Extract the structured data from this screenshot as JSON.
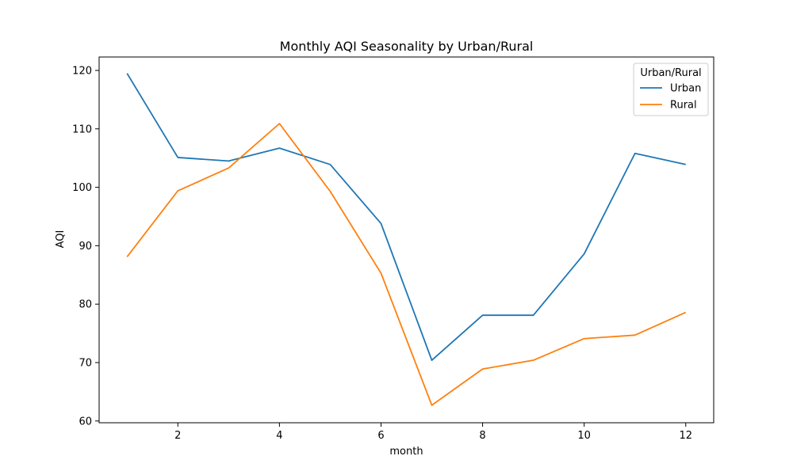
{
  "chart_data": {
    "type": "line",
    "title": "Monthly AQI Seasonality by Urban/Rural",
    "xlabel": "month",
    "ylabel": "AQI",
    "xlim": [
      0.45,
      12.55
    ],
    "ylim": [
      59.7,
      122.3
    ],
    "xticks": [
      2,
      4,
      6,
      8,
      10,
      12
    ],
    "yticks": [
      60,
      70,
      80,
      90,
      100,
      110,
      120
    ],
    "grid": false,
    "legend": {
      "title": "Urban/Rural",
      "position": "top-right"
    },
    "x": [
      1,
      2,
      3,
      4,
      5,
      6,
      7,
      8,
      9,
      10,
      11,
      12
    ],
    "series": [
      {
        "name": "Urban",
        "color": "#1f77b4",
        "values": [
          119.5,
          105.1,
          104.5,
          106.7,
          103.9,
          93.8,
          70.4,
          78.1,
          78.1,
          88.6,
          105.8,
          103.9
        ]
      },
      {
        "name": "Rural",
        "color": "#ff7f0e",
        "values": [
          88.1,
          99.4,
          103.3,
          110.9,
          99.3,
          85.3,
          62.7,
          68.9,
          70.4,
          74.1,
          74.7,
          78.6
        ]
      }
    ]
  }
}
